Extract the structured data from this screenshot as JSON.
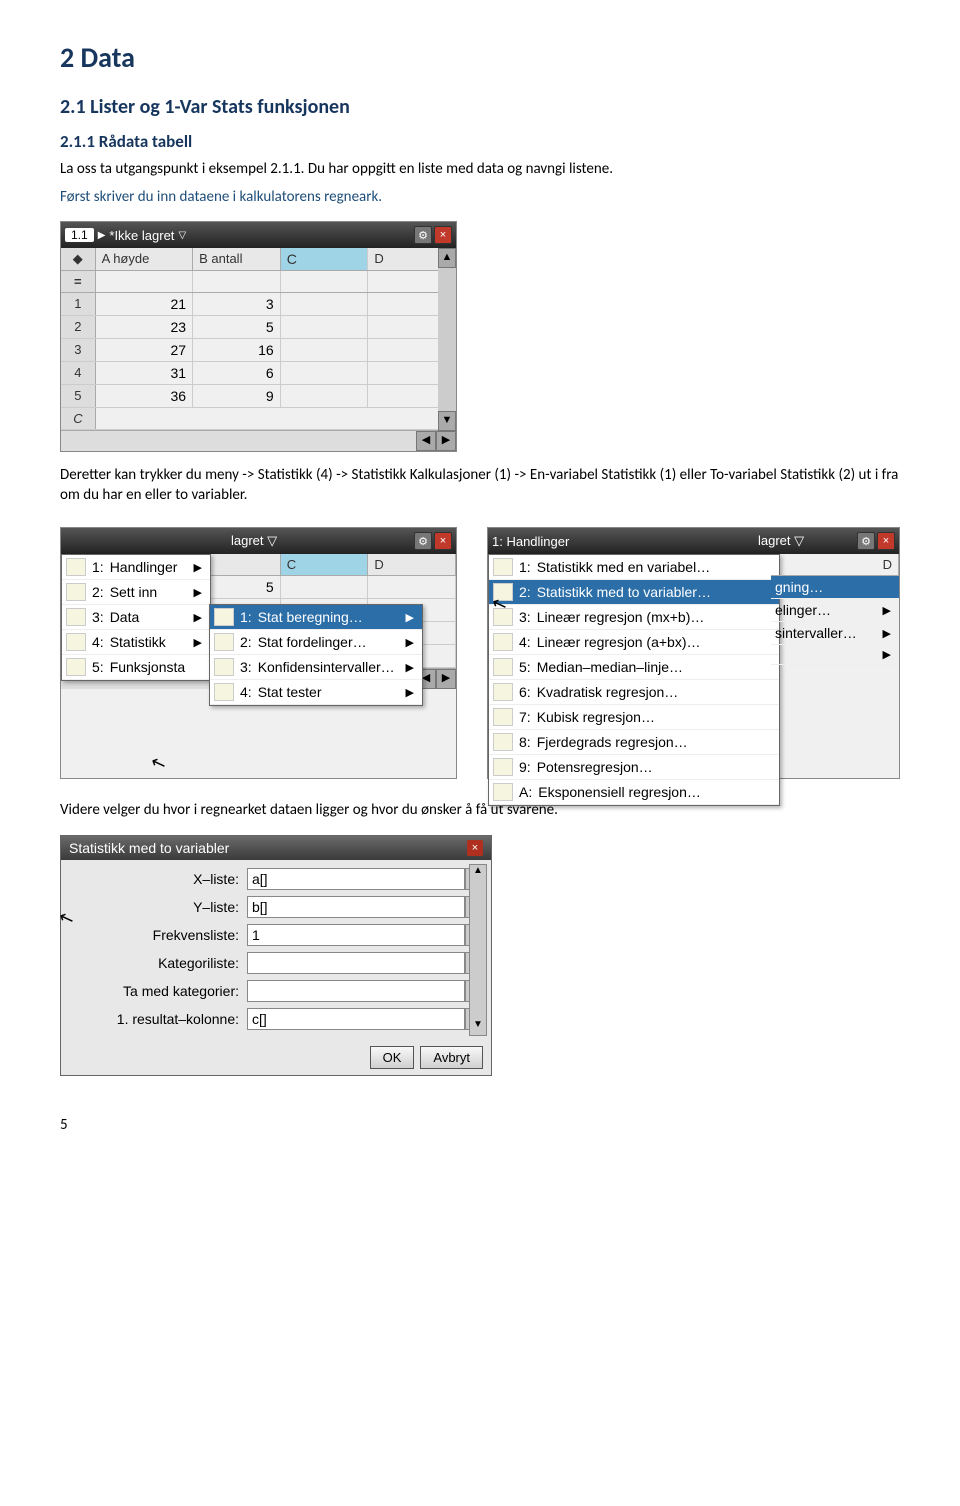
{
  "headings": {
    "h1": "2  Data",
    "h2": "2.1  Lister og 1-Var Stats funksjonen",
    "h3": "2.1.1  Rådata tabell"
  },
  "paragraphs": {
    "p1": "La oss ta utgangspunkt i eksempel 2.1.1. Du har oppgitt en liste med data og navngi listene.",
    "p2": "Først skriver du inn dataene i kalkulatorens regneark.",
    "p3": "Deretter kan trykker du meny -> Statistikk (4) -> Statistikk Kalkulasjoner (1) -> En-variabel Statistikk (1) eller To-variabel Statistikk (2) ut i fra om du har en eller to variabler.",
    "p4": "Videre velger du hvor i regnearket dataen ligger og hvor du ønsker å få ut svarene."
  },
  "titlebar": {
    "tab": "1.1",
    "title": "*Ikke lagret",
    "gear": "⚙",
    "close": "×"
  },
  "sheet": {
    "col_labels": {
      "A": "A",
      "B": "B",
      "C": "C",
      "D": "D"
    },
    "col_names": {
      "A": "høyde",
      "B": "antall"
    },
    "rows": [
      {
        "n": "1",
        "a": "21",
        "b": "3"
      },
      {
        "n": "2",
        "a": "23",
        "b": "5"
      },
      {
        "n": "3",
        "a": "27",
        "b": "16"
      },
      {
        "n": "4",
        "a": "31",
        "b": "6"
      },
      {
        "n": "5",
        "a": "36",
        "b": "9"
      }
    ],
    "formula_label": "=",
    "cell_ref": "C"
  },
  "menuA": {
    "items": [
      {
        "n": "1:",
        "label": "Handlinger",
        "arrow": true
      },
      {
        "n": "2:",
        "label": "Sett inn",
        "arrow": true
      },
      {
        "n": "3:",
        "label": "Data",
        "arrow": true
      },
      {
        "n": "4:",
        "label": "Statistikk",
        "arrow": true
      },
      {
        "n": "5:",
        "label": "Funksjonsta",
        "arrow": false
      }
    ]
  },
  "menuA_sub": {
    "items": [
      {
        "n": "1:",
        "label": "Stat beregning…",
        "sel": true,
        "arrow": true
      },
      {
        "n": "2:",
        "label": "Stat fordelinger…",
        "arrow": true
      },
      {
        "n": "3:",
        "label": "Konfidensintervaller…",
        "arrow": true
      },
      {
        "n": "4:",
        "label": "Stat tester",
        "arrow": true
      }
    ]
  },
  "left_title": {
    "tab": "",
    "title": "lagret",
    "tri": "▽"
  },
  "menuB": {
    "items": [
      {
        "n": "1:",
        "label": "Statistikk med en variabel…"
      },
      {
        "n": "2:",
        "label": "Statistikk med to variabler…",
        "sel": true
      },
      {
        "n": "3:",
        "label": "Lineær regresjon (mx+b)…"
      },
      {
        "n": "4:",
        "label": "Lineær regresjon (a+bx)…"
      },
      {
        "n": "5:",
        "label": "Median–median–linje…"
      },
      {
        "n": "6:",
        "label": "Kvadratisk regresjon…"
      },
      {
        "n": "7:",
        "label": "Kubisk regresjon…"
      },
      {
        "n": "8:",
        "label": "Fjerdegrads regresjon…"
      },
      {
        "n": "9:",
        "label": "Potensregresjon…"
      },
      {
        "n": "A:",
        "label": "Eksponensiell regresjon…"
      }
    ]
  },
  "right_title": {
    "tab": "",
    "title": "1: Handlinger"
  },
  "right_side": {
    "items": [
      {
        "label": "gning…"
      },
      {
        "label": "elinger…",
        "arrow": true
      },
      {
        "label": "sintervaller…",
        "arrow": true
      },
      {
        "label": "",
        "arrow": true
      }
    ]
  },
  "dialog": {
    "title": "Statistikk med to variabler",
    "fields": [
      {
        "label": "X–liste:",
        "value": "a[]"
      },
      {
        "label": "Y–liste:",
        "value": "b[]"
      },
      {
        "label": "Frekvensliste:",
        "value": "1"
      },
      {
        "label": "Kategoriliste:",
        "value": ""
      },
      {
        "label": "Ta med kategorier:",
        "value": ""
      },
      {
        "label": "1.  resultat–kolonne:",
        "value": "c[]"
      }
    ],
    "ok": "OK",
    "cancel": "Avbryt"
  },
  "page_number": "5",
  "colors": {
    "heading": "#17365d",
    "sel_bg": "#2b6ea8",
    "cell_sel": "#9fd3e6"
  }
}
